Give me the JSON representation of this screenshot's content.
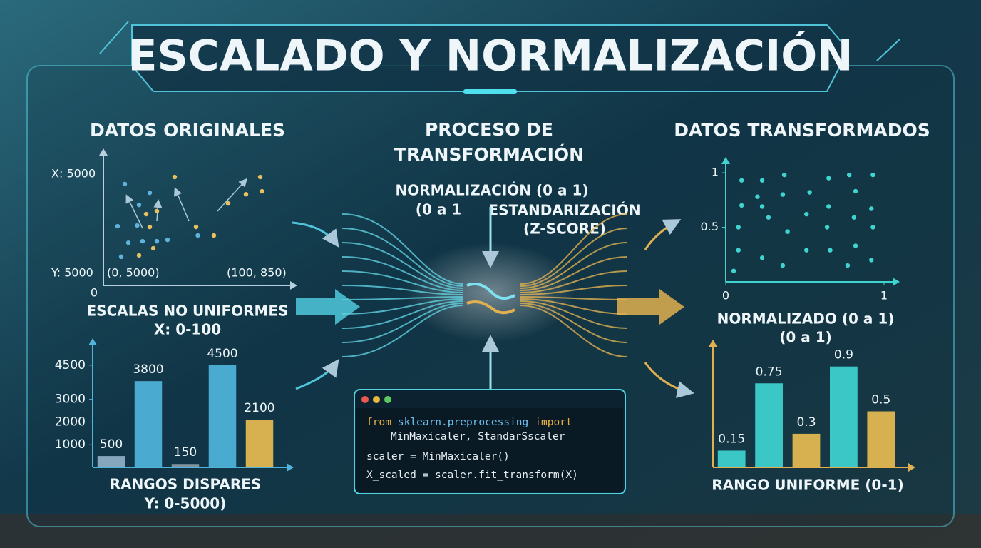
{
  "header": {
    "title": "ESCALADO Y NORMALIZACIÓN"
  },
  "left": {
    "heading": "DATOS ORIGINALES",
    "scatter": {
      "type": "scatter",
      "label_x": "X: 5000",
      "label_y": "Y: 5000",
      "point_a": "(0, 5000)",
      "point_b": "(100, 850)",
      "origin": "0",
      "xlim": [
        0,
        100
      ],
      "ylim": [
        0,
        5000
      ],
      "series": [
        {
          "color": "#5fb2dc",
          "x": [
            12,
            20,
            26,
            8,
            19,
            14,
            22,
            30,
            36,
            10,
            53
          ],
          "values": [
            4180,
            3320,
            3820,
            2440,
            2470,
            1760,
            1820,
            1820,
            1880,
            1180,
            2060
          ]
        },
        {
          "color": "#e8c060",
          "x": [
            40,
            24,
            30,
            26,
            20,
            28,
            52,
            62,
            70,
            80,
            88,
            89
          ],
          "values": [
            4470,
            2940,
            3060,
            2410,
            1240,
            1530,
            2410,
            2060,
            3380,
            3760,
            4470,
            3880
          ]
        }
      ]
    },
    "caption": "ESCALAS NO UNIFORMES",
    "caption_sub": "X: 0-100",
    "bars": {
      "type": "bar",
      "values": [
        500,
        3800,
        150,
        4500,
        2100
      ],
      "colors": [
        "#8fb0c8",
        "#4fb4dc",
        "#8a9aa8",
        "#4fb4dc",
        "#e8bc50"
      ],
      "ylim": [
        0,
        5000
      ],
      "yticks": [
        1000,
        2000,
        3000,
        4500
      ]
    },
    "bars_caption": "RANGOS DISPARES",
    "bars_caption_sub": "Y: 0-5000)"
  },
  "center": {
    "heading_line1": "PROCESO DE",
    "heading_line2": "TRANSFORMACIÓN",
    "normalizacion": "NORMALIZACIÓN (0 a 1)",
    "normalizacion_sub": "(0 a 1",
    "estandarizacion": "ESTANDARIZACIÓN",
    "estandarizacion_sub": "(Z-SCORE)",
    "code": {
      "line1": [
        "from",
        "sklearn.preprocessing",
        "import"
      ],
      "line2": "MinMaxicaler, StandarSscaler",
      "line3": "scaler = MinMaxicaler()",
      "line4": "X_scaled = scaler.fit_transform(X)"
    }
  },
  "right": {
    "heading": "DATOS TRANSFORMADOS",
    "scatter": {
      "type": "scatter",
      "xlim": [
        0,
        1
      ],
      "ylim": [
        0,
        1
      ],
      "xticks": [
        0,
        1
      ],
      "yticks": [
        0.5,
        1
      ],
      "series": [
        {
          "color": "#3fd4d0",
          "x": [
            0.1,
            0.23,
            0.37,
            0.53,
            0.65,
            0.78,
            0.93,
            0.2,
            0.36,
            0.82,
            0.1,
            0.23,
            0.51,
            0.65,
            0.92,
            0.27,
            0.81,
            0.08,
            0.39,
            0.64,
            0.93,
            0.51,
            0.08,
            0.23,
            0.66,
            0.82,
            0.36,
            0.77,
            0.92,
            0.05
          ],
          "values": [
            0.93,
            0.93,
            0.98,
            0.82,
            0.95,
            0.98,
            0.98,
            0.78,
            0.8,
            0.83,
            0.7,
            0.69,
            0.62,
            0.69,
            0.67,
            0.59,
            0.59,
            0.5,
            0.46,
            0.5,
            0.5,
            0.29,
            0.29,
            0.22,
            0.29,
            0.33,
            0.15,
            0.15,
            0.2,
            0.1
          ]
        }
      ]
    },
    "caption": "NORMALIZADO (0 a 1)",
    "caption_sub": "(0 a 1)",
    "bars": {
      "type": "bar",
      "values": [
        0.15,
        0.75,
        0.3,
        0.9,
        0.5
      ],
      "colors": [
        "#3fd4d0",
        "#3fd4d0",
        "#e8bc50",
        "#3fd4d0",
        "#e8bc50"
      ],
      "ylim": [
        0,
        1
      ]
    },
    "bars_caption": "RANGO UNIFORME (0-1)"
  }
}
